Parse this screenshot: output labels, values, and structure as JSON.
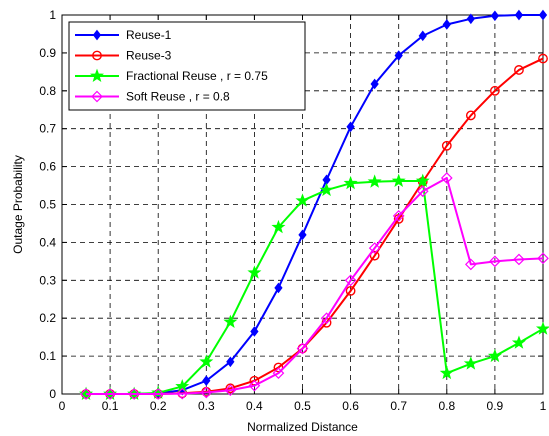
{
  "chart_data": {
    "type": "line",
    "title": "",
    "xlabel": "Normalized Distance",
    "ylabel": "Outage Probability",
    "xlim": [
      0,
      1
    ],
    "ylim": [
      0,
      1
    ],
    "xticks": [
      "0",
      "0.1",
      "0.2",
      "0.3",
      "0.4",
      "0.5",
      "0.6",
      "0.7",
      "0.8",
      "0.9",
      "1"
    ],
    "yticks": [
      "0",
      "0.1",
      "0.2",
      "0.3",
      "0.4",
      "0.5",
      "0.6",
      "0.7",
      "0.8",
      "0.9",
      "1"
    ],
    "grid": true,
    "legend_position": "top-left",
    "series": [
      {
        "name": "Reuse-1",
        "color": "#0000ff",
        "marker": "diamond-filled",
        "x": [
          0.05,
          0.1,
          0.15,
          0.2,
          0.25,
          0.3,
          0.35,
          0.4,
          0.45,
          0.5,
          0.55,
          0.6,
          0.65,
          0.7,
          0.75,
          0.8,
          0.85,
          0.9,
          0.95,
          1.0
        ],
        "y": [
          0.0,
          0.0,
          0.0,
          0.002,
          0.01,
          0.035,
          0.085,
          0.165,
          0.28,
          0.42,
          0.565,
          0.705,
          0.818,
          0.893,
          0.945,
          0.975,
          0.99,
          0.998,
          1.0,
          1.0
        ]
      },
      {
        "name": "Reuse-3",
        "color": "#ff0000",
        "marker": "circle",
        "x": [
          0.05,
          0.1,
          0.15,
          0.2,
          0.25,
          0.3,
          0.35,
          0.4,
          0.45,
          0.5,
          0.55,
          0.6,
          0.65,
          0.7,
          0.75,
          0.8,
          0.85,
          0.9,
          0.95,
          1.0
        ],
        "y": [
          0.0,
          0.0,
          0.0,
          0.0,
          0.002,
          0.006,
          0.015,
          0.035,
          0.07,
          0.12,
          0.188,
          0.272,
          0.365,
          0.462,
          0.56,
          0.655,
          0.735,
          0.8,
          0.855,
          0.885
        ]
      },
      {
        "name": "Fractional Reuse , r = 0.75",
        "color": "#00ff00",
        "marker": "star",
        "x": [
          0.05,
          0.1,
          0.15,
          0.2,
          0.25,
          0.3,
          0.35,
          0.4,
          0.45,
          0.5,
          0.55,
          0.6,
          0.65,
          0.7,
          0.75,
          0.8,
          0.85,
          0.9,
          0.95,
          1.0
        ],
        "y": [
          0.0,
          0.0,
          0.0,
          0.003,
          0.02,
          0.085,
          0.19,
          0.32,
          0.44,
          0.51,
          0.538,
          0.556,
          0.56,
          0.562,
          0.562,
          0.055,
          0.08,
          0.1,
          0.135,
          0.172
        ]
      },
      {
        "name": "Soft Reuse , r = 0.8",
        "color": "#ff00ff",
        "marker": "diamond-open",
        "x": [
          0.05,
          0.1,
          0.15,
          0.2,
          0.25,
          0.3,
          0.35,
          0.4,
          0.45,
          0.5,
          0.55,
          0.6,
          0.65,
          0.7,
          0.75,
          0.8,
          0.85,
          0.9,
          0.95,
          1.0
        ],
        "y": [
          0.0,
          0.0,
          0.0,
          0.0,
          0.001,
          0.004,
          0.01,
          0.022,
          0.055,
          0.12,
          0.2,
          0.3,
          0.385,
          0.47,
          0.535,
          0.57,
          0.342,
          0.35,
          0.355,
          0.358
        ]
      }
    ]
  }
}
